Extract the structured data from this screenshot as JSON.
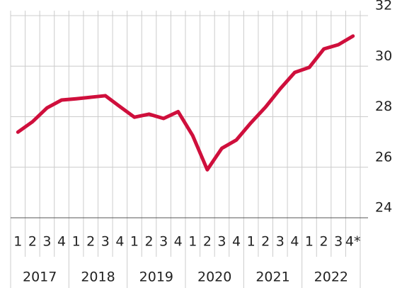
{
  "chart_data": {
    "type": "line",
    "categories": [
      "1",
      "2",
      "3",
      "4",
      "1",
      "2",
      "3",
      "4",
      "1",
      "2",
      "3",
      "4",
      "1",
      "2",
      "3",
      "4",
      "1",
      "2",
      "3",
      "4",
      "1",
      "2",
      "3",
      "4*"
    ],
    "groups": [
      "2017",
      "2018",
      "2019",
      "2020",
      "2021",
      "2022"
    ],
    "series": [
      {
        "color": "#cf0f3c",
        "values": [
          27.39,
          27.8,
          28.35,
          28.66,
          28.71,
          28.77,
          28.83,
          28.4,
          27.98,
          28.1,
          27.93,
          28.2,
          27.25,
          25.9,
          26.75,
          27.08,
          27.76,
          28.38,
          29.1,
          29.75,
          29.95,
          30.68,
          30.85,
          31.19
        ]
      }
    ],
    "ylim": [
      24,
      32
    ],
    "yticks": [
      24,
      26,
      28,
      30,
      32
    ],
    "grid": true
  }
}
